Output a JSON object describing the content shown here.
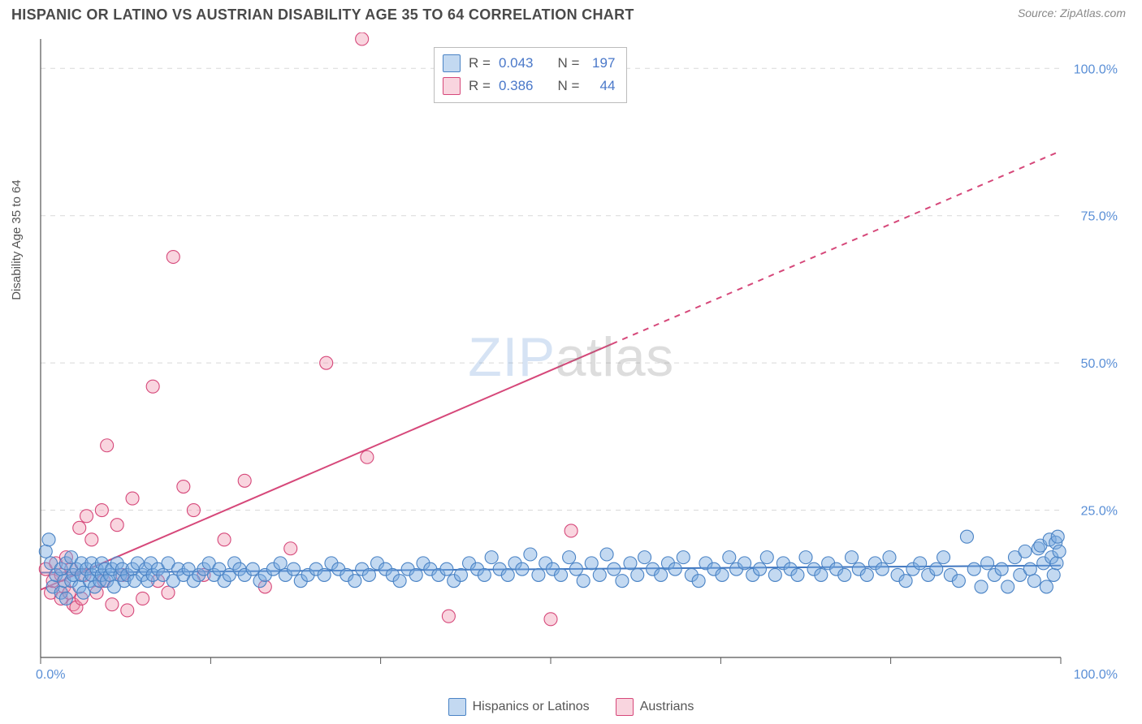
{
  "header": {
    "title": "HISPANIC OR LATINO VS AUSTRIAN DISABILITY AGE 35 TO 64 CORRELATION CHART",
    "source": "Source: ZipAtlas.com"
  },
  "ylabel": "Disability Age 35 to 64",
  "watermark": {
    "left": "ZIP",
    "right": "atlas"
  },
  "chart": {
    "type": "scatter",
    "xlim": [
      0,
      100
    ],
    "ylim": [
      0,
      105
    ],
    "ytick_values": [
      25,
      50,
      75,
      100
    ],
    "ytick_labels": [
      "25.0%",
      "50.0%",
      "75.0%",
      "100.0%"
    ],
    "xtick_values": [
      0,
      16.67,
      33.33,
      50,
      66.67,
      83.33,
      100
    ],
    "xcorner_labels": [
      "0.0%",
      "100.0%"
    ],
    "background": "#ffffff",
    "grid_color": "#d8d8d8",
    "axis_label_color": "#5a8fd6",
    "marker_radius": 8,
    "marker_stroke_width": 1.1,
    "series": [
      {
        "name": "Hispanics or Latinos",
        "fill": "rgba(122,170,225,0.45)",
        "stroke": "#4a83c5",
        "trend": {
          "slope": 0.012,
          "intercept": 14.4,
          "solid_to_x": 100,
          "color": "#3f76c0",
          "width": 2
        },
        "points": [
          [
            0.5,
            18
          ],
          [
            0.8,
            20
          ],
          [
            1,
            16
          ],
          [
            1.2,
            12
          ],
          [
            1.5,
            14
          ],
          [
            2,
            15
          ],
          [
            2,
            11
          ],
          [
            2.3,
            13
          ],
          [
            2.5,
            16
          ],
          [
            2.5,
            10
          ],
          [
            3,
            17
          ],
          [
            3,
            13
          ],
          [
            3.2,
            14
          ],
          [
            3.5,
            15
          ],
          [
            3.8,
            12
          ],
          [
            4,
            16
          ],
          [
            4,
            14
          ],
          [
            4.2,
            11
          ],
          [
            4.5,
            15
          ],
          [
            4.8,
            13
          ],
          [
            5,
            16
          ],
          [
            5,
            14
          ],
          [
            5.3,
            12
          ],
          [
            5.5,
            15
          ],
          [
            5.8,
            13
          ],
          [
            6,
            14
          ],
          [
            6,
            16
          ],
          [
            6.3,
            15
          ],
          [
            6.5,
            13
          ],
          [
            6.8,
            14
          ],
          [
            7,
            15
          ],
          [
            7.2,
            12
          ],
          [
            7.5,
            16
          ],
          [
            7.8,
            14
          ],
          [
            8,
            15
          ],
          [
            8.2,
            13
          ],
          [
            8.5,
            14
          ],
          [
            9,
            15
          ],
          [
            9.2,
            13
          ],
          [
            9.5,
            16
          ],
          [
            10,
            14
          ],
          [
            10.3,
            15
          ],
          [
            10.5,
            13
          ],
          [
            10.8,
            16
          ],
          [
            11,
            14
          ],
          [
            11.5,
            15
          ],
          [
            12,
            14
          ],
          [
            12.5,
            16
          ],
          [
            13,
            13
          ],
          [
            13.5,
            15
          ],
          [
            14,
            14
          ],
          [
            14.5,
            15
          ],
          [
            15,
            13
          ],
          [
            15.5,
            14
          ],
          [
            16,
            15
          ],
          [
            16.5,
            16
          ],
          [
            17,
            14
          ],
          [
            17.5,
            15
          ],
          [
            18,
            13
          ],
          [
            18.5,
            14
          ],
          [
            19,
            16
          ],
          [
            19.5,
            15
          ],
          [
            20,
            14
          ],
          [
            20.8,
            15
          ],
          [
            21.5,
            13
          ],
          [
            22,
            14
          ],
          [
            22.8,
            15
          ],
          [
            23.5,
            16
          ],
          [
            24,
            14
          ],
          [
            24.8,
            15
          ],
          [
            25.5,
            13
          ],
          [
            26.2,
            14
          ],
          [
            27,
            15
          ],
          [
            27.8,
            14
          ],
          [
            28.5,
            16
          ],
          [
            29.2,
            15
          ],
          [
            30,
            14
          ],
          [
            30.8,
            13
          ],
          [
            31.5,
            15
          ],
          [
            32.2,
            14
          ],
          [
            33,
            16
          ],
          [
            33.8,
            15
          ],
          [
            34.5,
            14
          ],
          [
            35.2,
            13
          ],
          [
            36,
            15
          ],
          [
            36.8,
            14
          ],
          [
            37.5,
            16
          ],
          [
            38.2,
            15
          ],
          [
            39,
            14
          ],
          [
            39.8,
            15
          ],
          [
            40.5,
            13
          ],
          [
            41.2,
            14
          ],
          [
            42,
            16
          ],
          [
            42.8,
            15
          ],
          [
            43.5,
            14
          ],
          [
            44.2,
            17
          ],
          [
            45,
            15
          ],
          [
            45.8,
            14
          ],
          [
            46.5,
            16
          ],
          [
            47.2,
            15
          ],
          [
            48,
            17.5
          ],
          [
            48.8,
            14
          ],
          [
            49.5,
            16
          ],
          [
            50.2,
            15
          ],
          [
            51,
            14
          ],
          [
            51.8,
            17
          ],
          [
            52.5,
            15
          ],
          [
            53.2,
            13
          ],
          [
            54,
            16
          ],
          [
            54.8,
            14
          ],
          [
            55.5,
            17.5
          ],
          [
            56.2,
            15
          ],
          [
            57,
            13
          ],
          [
            57.8,
            16
          ],
          [
            58.5,
            14
          ],
          [
            59.2,
            17
          ],
          [
            60,
            15
          ],
          [
            60.8,
            14
          ],
          [
            61.5,
            16
          ],
          [
            62.2,
            15
          ],
          [
            63,
            17
          ],
          [
            63.8,
            14
          ],
          [
            64.5,
            13
          ],
          [
            65.2,
            16
          ],
          [
            66,
            15
          ],
          [
            66.8,
            14
          ],
          [
            67.5,
            17
          ],
          [
            68.2,
            15
          ],
          [
            69,
            16
          ],
          [
            69.8,
            14
          ],
          [
            70.5,
            15
          ],
          [
            71.2,
            17
          ],
          [
            72,
            14
          ],
          [
            72.8,
            16
          ],
          [
            73.5,
            15
          ],
          [
            74.2,
            14
          ],
          [
            75,
            17
          ],
          [
            75.8,
            15
          ],
          [
            76.5,
            14
          ],
          [
            77.2,
            16
          ],
          [
            78,
            15
          ],
          [
            78.8,
            14
          ],
          [
            79.5,
            17
          ],
          [
            80.2,
            15
          ],
          [
            81,
            14
          ],
          [
            81.8,
            16
          ],
          [
            82.5,
            15
          ],
          [
            83.2,
            17
          ],
          [
            84,
            14
          ],
          [
            84.8,
            13
          ],
          [
            85.5,
            15
          ],
          [
            86.2,
            16
          ],
          [
            87,
            14
          ],
          [
            87.8,
            15
          ],
          [
            88.5,
            17
          ],
          [
            89.2,
            14
          ],
          [
            90,
            13
          ],
          [
            90.8,
            20.5
          ],
          [
            91.5,
            15
          ],
          [
            92.2,
            12
          ],
          [
            92.8,
            16
          ],
          [
            93.5,
            14
          ],
          [
            94.2,
            15
          ],
          [
            94.8,
            12
          ],
          [
            95.5,
            17
          ],
          [
            96,
            14
          ],
          [
            96.5,
            18
          ],
          [
            97,
            15
          ],
          [
            97.4,
            13
          ],
          [
            97.8,
            18.5
          ],
          [
            98,
            19
          ],
          [
            98.3,
            16
          ],
          [
            98.6,
            12
          ],
          [
            98.9,
            20
          ],
          [
            99.1,
            17
          ],
          [
            99.3,
            14
          ],
          [
            99.5,
            19.5
          ],
          [
            99.6,
            16
          ],
          [
            99.7,
            20.5
          ],
          [
            99.85,
            18
          ]
        ]
      },
      {
        "name": "Austrians",
        "fill": "rgba(240,150,175,0.40)",
        "stroke": "#d6487a",
        "trend": {
          "slope": 0.745,
          "intercept": 11.5,
          "solid_to_x": 56,
          "color": "#d6487a",
          "width": 2
        },
        "points": [
          [
            0.5,
            15
          ],
          [
            1,
            11
          ],
          [
            1.2,
            13
          ],
          [
            1.5,
            16
          ],
          [
            2,
            10
          ],
          [
            2,
            14
          ],
          [
            2.3,
            12
          ],
          [
            2.5,
            17
          ],
          [
            2.8,
            11
          ],
          [
            3,
            15
          ],
          [
            3.2,
            9
          ],
          [
            3.5,
            8.5
          ],
          [
            3.8,
            22
          ],
          [
            4,
            10
          ],
          [
            4.3,
            14
          ],
          [
            4.5,
            24
          ],
          [
            5,
            20
          ],
          [
            5.5,
            11
          ],
          [
            6,
            25
          ],
          [
            6.2,
            13
          ],
          [
            6.5,
            36
          ],
          [
            7,
            9
          ],
          [
            7.5,
            22.5
          ],
          [
            8,
            14
          ],
          [
            8.5,
            8
          ],
          [
            9,
            27
          ],
          [
            10,
            10
          ],
          [
            11,
            46
          ],
          [
            11.5,
            13
          ],
          [
            12.5,
            11
          ],
          [
            13,
            68
          ],
          [
            14,
            29
          ],
          [
            15,
            25
          ],
          [
            16,
            14
          ],
          [
            18,
            20
          ],
          [
            20,
            30
          ],
          [
            22,
            12
          ],
          [
            24.5,
            18.5
          ],
          [
            28,
            50
          ],
          [
            31.5,
            105
          ],
          [
            32,
            34
          ],
          [
            40,
            7
          ],
          [
            50,
            6.5
          ],
          [
            52,
            21.5
          ]
        ]
      }
    ]
  },
  "stats_box": {
    "rows": [
      {
        "swatch_fill": "rgba(122,170,225,0.45)",
        "swatch_stroke": "#4a83c5",
        "r_label": "R =",
        "r": "0.043",
        "n_label": "N =",
        "n": "197"
      },
      {
        "swatch_fill": "rgba(240,150,175,0.40)",
        "swatch_stroke": "#d6487a",
        "r_label": "R =",
        "r": "0.386",
        "n_label": "N =",
        "n": "44"
      }
    ]
  },
  "bottom_legend": [
    {
      "label": "Hispanics or Latinos",
      "fill": "rgba(122,170,225,0.45)",
      "stroke": "#4a83c5"
    },
    {
      "label": "Austrians",
      "fill": "rgba(240,150,175,0.40)",
      "stroke": "#d6487a"
    }
  ]
}
